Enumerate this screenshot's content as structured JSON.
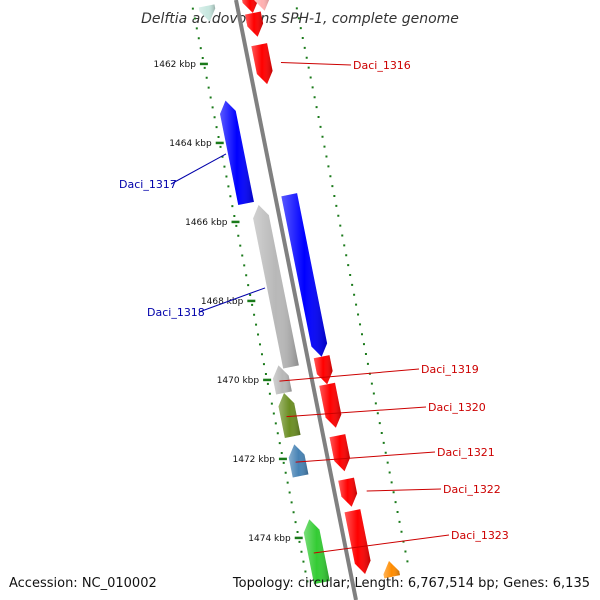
{
  "title": "Delftia acidovorans SPH-1, complete genome",
  "footer": {
    "accession": "Accession: NC_010002",
    "summary": "Topology: circular; Length: 6,767,514 bp; Genes: 6,135"
  },
  "scale": {
    "unit": "kbp",
    "major_ticks": [
      1462,
      1464,
      1466,
      1468,
      1470,
      1472,
      1474
    ],
    "tick_labels": [
      "1462 kbp",
      "1464 kbp",
      "1466 kbp",
      "1468 kbp",
      "1470 kbp",
      "1472 kbp",
      "1474 kbp"
    ]
  },
  "colors": {
    "forward_label": "#cc0000",
    "reverse_label": "#0000aa",
    "backbone": "#808080",
    "tick": "#1a7a1a"
  },
  "genes": [
    {
      "id": "g0",
      "label": "",
      "strand": "-",
      "start": 1460.6,
      "end": 1461.0,
      "lane": "inner",
      "color": "#ff0000"
    },
    {
      "id": "g0b",
      "label": "",
      "strand": "-",
      "start": 1460.6,
      "end": 1461.0,
      "lane": "mid",
      "color": "#ffb0b0"
    },
    {
      "id": "g0c",
      "label": "",
      "strand": "-",
      "start": 1460.6,
      "end": 1461.0,
      "lane": "outer",
      "color": "#c8e8e0"
    },
    {
      "id": "g1",
      "label": "",
      "strand": "-",
      "start": 1461.0,
      "end": 1461.6,
      "lane": "inner",
      "color": "#ff0000"
    },
    {
      "id": "g2",
      "label": "Daci_1316",
      "strand": "-",
      "start": 1461.8,
      "end": 1462.8,
      "lane": "inner",
      "color": "#ff0000"
    },
    {
      "id": "g3",
      "label": "Daci_1317",
      "strand": "+",
      "start": 1463.0,
      "end": 1465.6,
      "lane": "outer",
      "color": "#0000ff"
    },
    {
      "id": "g4",
      "label": "Daci_1318",
      "strand": "+",
      "start": 1465.7,
      "end": 1469.8,
      "lane": "middle",
      "color": "#b8b8b8"
    },
    {
      "id": "g5",
      "label": "",
      "strand": "-",
      "start": 1465.6,
      "end": 1469.7,
      "lane": "inner",
      "color": "#0000ff"
    },
    {
      "id": "g6",
      "label": "",
      "strand": "-",
      "start": 1469.7,
      "end": 1470.4,
      "lane": "inner",
      "color": "#ff0000"
    },
    {
      "id": "g7",
      "label": "Daci_1319",
      "strand": "+",
      "start": 1469.7,
      "end": 1470.4,
      "lane": "outer",
      "color": "#b8b8b8"
    },
    {
      "id": "g8",
      "label": "Daci_1320",
      "strand": "+",
      "start": 1470.4,
      "end": 1471.5,
      "lane": "outer",
      "color": "#6b8e23"
    },
    {
      "id": "g9",
      "label": "",
      "strand": "-",
      "start": 1470.4,
      "end": 1471.5,
      "lane": "inner",
      "color": "#ff0000"
    },
    {
      "id": "g10",
      "label": "Daci_1321",
      "strand": "+",
      "start": 1471.7,
      "end": 1472.5,
      "lane": "outer",
      "color": "#4682b4"
    },
    {
      "id": "g11",
      "label": "",
      "strand": "-",
      "start": 1471.7,
      "end": 1472.6,
      "lane": "inner",
      "color": "#ff0000"
    },
    {
      "id": "g12",
      "label": "Daci_1322",
      "strand": "-",
      "start": 1472.8,
      "end": 1473.5,
      "lane": "inner",
      "color": "#ff0000"
    },
    {
      "id": "g13",
      "label": "Daci_1323",
      "strand": "+",
      "start": 1473.6,
      "end": 1475.2,
      "lane": "outer",
      "color": "#33cc33"
    },
    {
      "id": "g14",
      "label": "",
      "strand": "-",
      "start": 1473.6,
      "end": 1475.2,
      "lane": "inner",
      "color": "#ff0000"
    },
    {
      "id": "g15",
      "label": "",
      "strand": "+",
      "start": 1475.0,
      "end": 1475.4,
      "lane": "far",
      "color": "#ff8c00"
    }
  ]
}
